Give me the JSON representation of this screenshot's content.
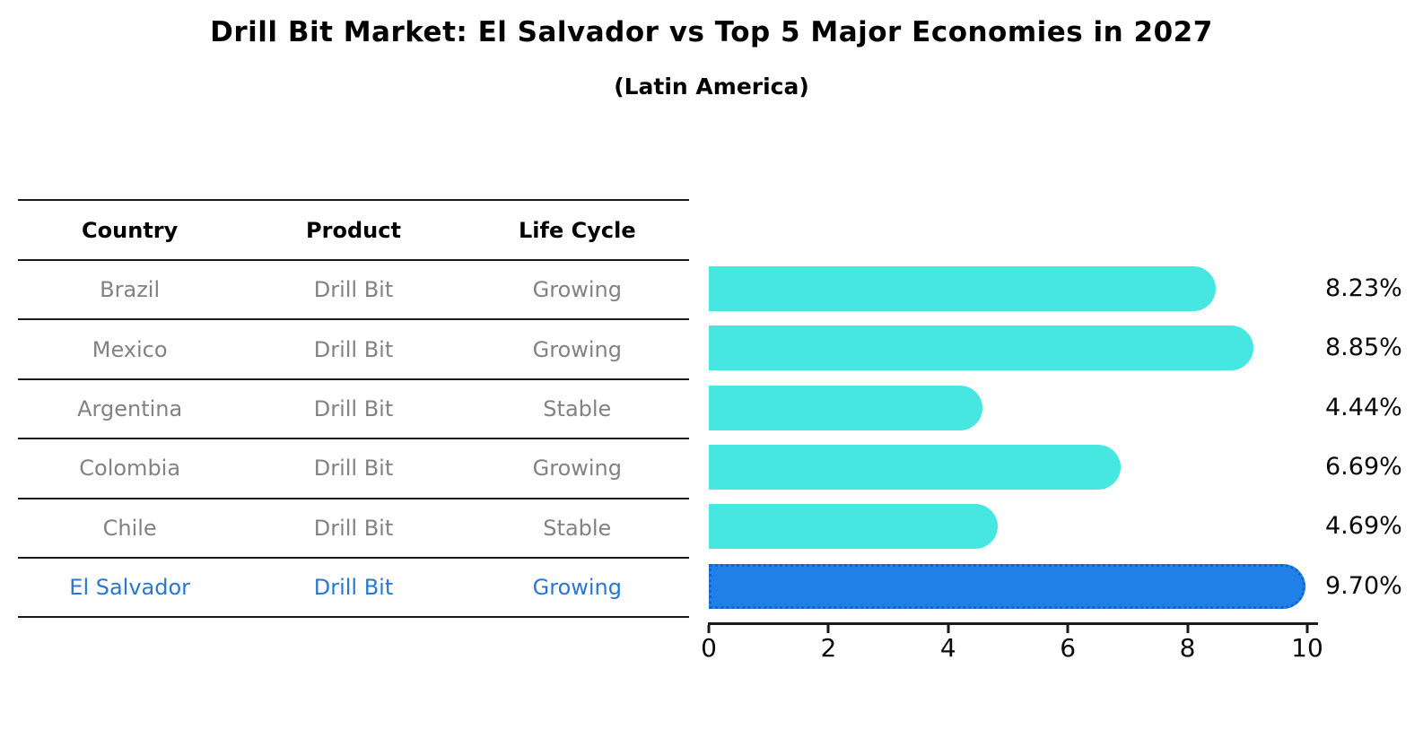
{
  "title": "Drill Bit Market: El Salvador vs Top 5 Major Economies in 2027",
  "subtitle": "(Latin America)",
  "table": {
    "headers": [
      "Country",
      "Product",
      "Life Cycle"
    ],
    "rows": [
      {
        "country": "Brazil",
        "product": "Drill Bit",
        "life_cycle": "Growing",
        "highlight": false
      },
      {
        "country": "Mexico",
        "product": "Drill Bit",
        "life_cycle": "Growing",
        "highlight": false
      },
      {
        "country": "Argentina",
        "product": "Drill Bit",
        "life_cycle": "Stable",
        "highlight": false
      },
      {
        "country": "Colombia",
        "product": "Drill Bit",
        "life_cycle": "Growing",
        "highlight": false
      },
      {
        "country": "Chile",
        "product": "Drill Bit",
        "life_cycle": "Stable",
        "highlight": false
      },
      {
        "country": "El Salvador",
        "product": "Drill Bit",
        "life_cycle": "Growing",
        "highlight": true
      }
    ]
  },
  "chart_data": {
    "type": "bar",
    "orientation": "horizontal",
    "title": "Drill Bit Market: El Salvador vs Top 5 Major Economies in 2027",
    "subtitle": "(Latin America)",
    "categories": [
      "Brazil",
      "Mexico",
      "Argentina",
      "Colombia",
      "Chile",
      "El Salvador"
    ],
    "values": [
      8.23,
      8.85,
      4.44,
      6.69,
      4.69,
      9.7
    ],
    "value_labels": [
      "8.23%",
      "8.85%",
      "4.44%",
      "6.69%",
      "4.69%",
      "9.70%"
    ],
    "xlim": [
      0,
      10
    ],
    "xticks": [
      "0",
      "2",
      "4",
      "6",
      "8",
      "10"
    ],
    "grid": false,
    "legend": false,
    "highlight_index": 5
  },
  "colors": {
    "bar": "#45e7e0",
    "highlight_bar": "#2080e8",
    "highlight_bar_border": "#1563d2",
    "row_text": "#828282",
    "highlight_text": "#2878d2",
    "axis": "#1a1a1a"
  }
}
